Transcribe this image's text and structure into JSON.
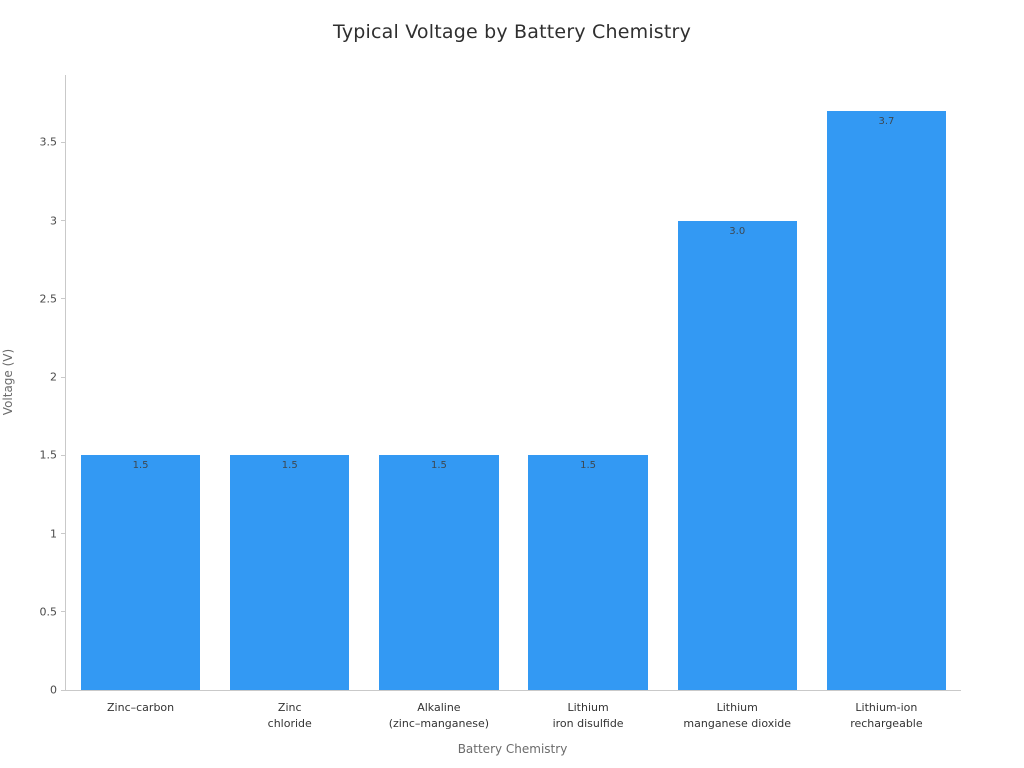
{
  "colors": {
    "bar": "#3399f3",
    "axis": "#c9c9c9",
    "title_text": "#2f2f2f",
    "value_label_text": "#3d4852"
  },
  "chart_data": {
    "type": "bar",
    "title": "Typical Voltage by Battery Chemistry",
    "xlabel": "Battery Chemistry",
    "ylabel": "Voltage (V)",
    "categories": [
      "Zinc–carbon",
      "Zinc\nchloride",
      "Alkaline\n(zinc–manganese)",
      "Lithium\niron disulfide",
      "Lithium\nmanganese dioxide",
      "Lithium-ion\nrechargeable"
    ],
    "values": [
      1.5,
      1.5,
      1.5,
      1.5,
      3.0,
      3.7
    ],
    "value_labels": [
      "1.5",
      "1.5",
      "1.5",
      "1.5",
      "3.0",
      "3.7"
    ],
    "ylim": [
      0,
      3.93
    ],
    "yticks": [
      0,
      0.5,
      1,
      1.5,
      2,
      2.5,
      3,
      3.5
    ],
    "ytick_labels": [
      "0",
      "0.5",
      "1",
      "1.5",
      "2",
      "2.5",
      "3",
      "3.5"
    ],
    "grid": false,
    "legend": "none",
    "bar_width_fraction": 0.8
  }
}
